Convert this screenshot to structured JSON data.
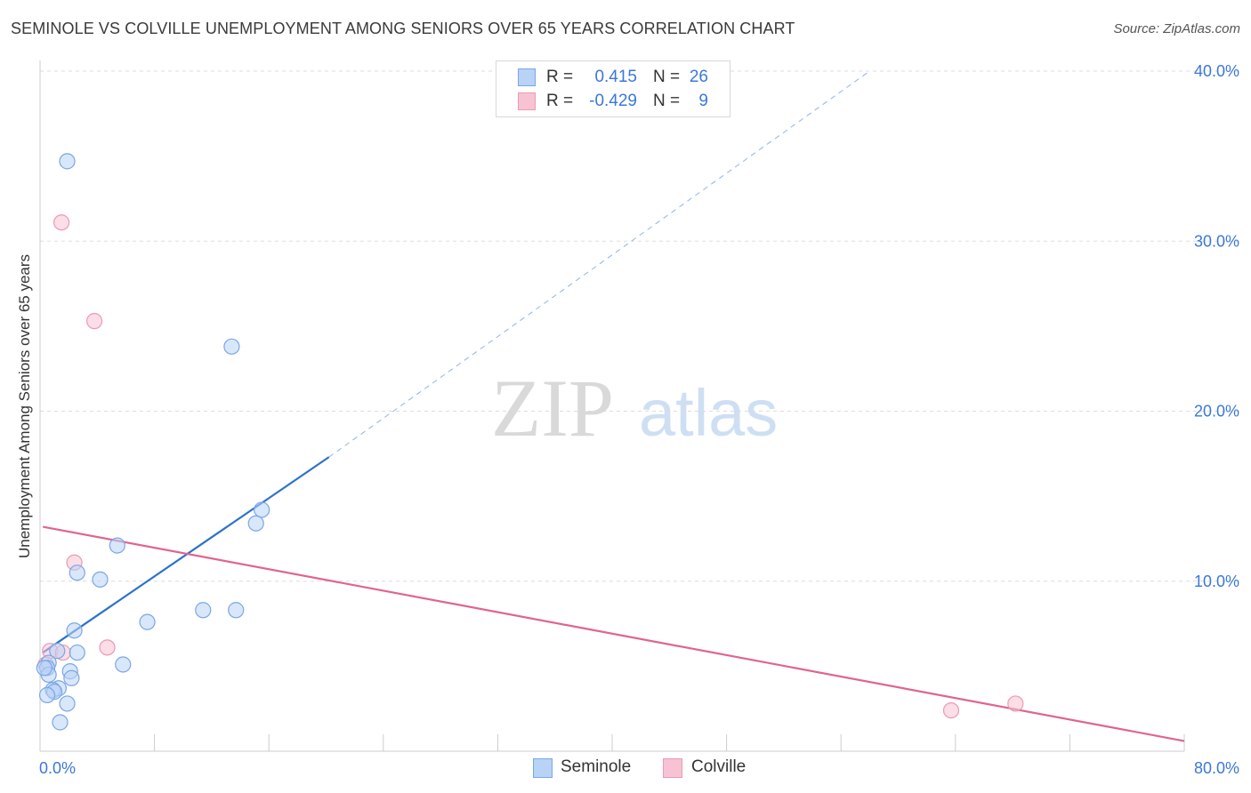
{
  "title": "SEMINOLE VS COLVILLE UNEMPLOYMENT AMONG SENIORS OVER 65 YEARS CORRELATION CHART",
  "source": "Source: ZipAtlas.com",
  "watermark": {
    "zip": "ZIP",
    "atlas": "atlas"
  },
  "colors": {
    "seminole_fill": "#b9d3f6",
    "seminole_stroke": "#7aa6e6",
    "seminole_line": "#2d72c9",
    "colville_fill": "#f7c3d2",
    "colville_stroke": "#eb9ab2",
    "colville_line": "#e0648e",
    "axis_text": "#3b78d8",
    "grid": "#dddddd"
  },
  "legend": {
    "rows": [
      {
        "r_label": "R =",
        "r_value": "0.415",
        "n_label": "N =",
        "n_value": "26"
      },
      {
        "r_label": "R =",
        "r_value": "-0.429",
        "n_label": "N =",
        "n_value": "9"
      }
    ]
  },
  "bottom_legend": {
    "seminole": "Seminole",
    "colville": "Colville"
  },
  "chart_data": {
    "type": "scatter",
    "title": "SEMINOLE VS COLVILLE UNEMPLOYMENT AMONG SENIORS OVER 65 YEARS CORRELATION CHART",
    "xlabel": "",
    "ylabel": "Unemployment Among Seniors over 65 years",
    "xlim": [
      0,
      80
    ],
    "ylim": [
      0,
      40
    ],
    "x_tick_labels": [
      "0.0%",
      "80.0%"
    ],
    "y_tick_labels": [
      "10.0%",
      "20.0%",
      "30.0%",
      "40.0%"
    ],
    "y_ticks": [
      10,
      20,
      30,
      40
    ],
    "series": [
      {
        "name": "Seminole",
        "points": [
          {
            "x": 1.9,
            "y": 34.7
          },
          {
            "x": 13.4,
            "y": 23.8
          },
          {
            "x": 15.5,
            "y": 14.2
          },
          {
            "x": 15.1,
            "y": 13.4
          },
          {
            "x": 5.4,
            "y": 12.1
          },
          {
            "x": 2.6,
            "y": 10.5
          },
          {
            "x": 4.2,
            "y": 10.1
          },
          {
            "x": 11.4,
            "y": 8.3
          },
          {
            "x": 13.7,
            "y": 8.3
          },
          {
            "x": 7.5,
            "y": 7.6
          },
          {
            "x": 2.4,
            "y": 7.1
          },
          {
            "x": 2.6,
            "y": 5.8
          },
          {
            "x": 1.2,
            "y": 5.9
          },
          {
            "x": 0.6,
            "y": 5.2
          },
          {
            "x": 0.5,
            "y": 4.9
          },
          {
            "x": 0.6,
            "y": 4.5
          },
          {
            "x": 5.8,
            "y": 5.1
          },
          {
            "x": 2.1,
            "y": 4.7
          },
          {
            "x": 2.2,
            "y": 4.3
          },
          {
            "x": 1.3,
            "y": 3.7
          },
          {
            "x": 0.9,
            "y": 3.6
          },
          {
            "x": 1.0,
            "y": 3.5
          },
          {
            "x": 0.5,
            "y": 3.3
          },
          {
            "x": 1.9,
            "y": 2.8
          },
          {
            "x": 1.4,
            "y": 1.7
          },
          {
            "x": 0.3,
            "y": 4.9
          }
        ],
        "trend": {
          "x0": 0.2,
          "y0": 5.8,
          "x1": 20.2,
          "y1": 17.3,
          "extend_x": 58.0,
          "extend_y": 40.0
        }
      },
      {
        "name": "Colville",
        "points": [
          {
            "x": 1.5,
            "y": 31.1
          },
          {
            "x": 3.8,
            "y": 25.3
          },
          {
            "x": 2.4,
            "y": 11.1
          },
          {
            "x": 4.7,
            "y": 6.1
          },
          {
            "x": 0.7,
            "y": 5.9
          },
          {
            "x": 1.6,
            "y": 5.8
          },
          {
            "x": 0.4,
            "y": 5.1
          },
          {
            "x": 63.7,
            "y": 2.4
          },
          {
            "x": 68.2,
            "y": 2.8
          }
        ],
        "trend": {
          "x0": 0.2,
          "y0": 13.2,
          "x1": 80.0,
          "y1": 0.6
        }
      }
    ]
  }
}
